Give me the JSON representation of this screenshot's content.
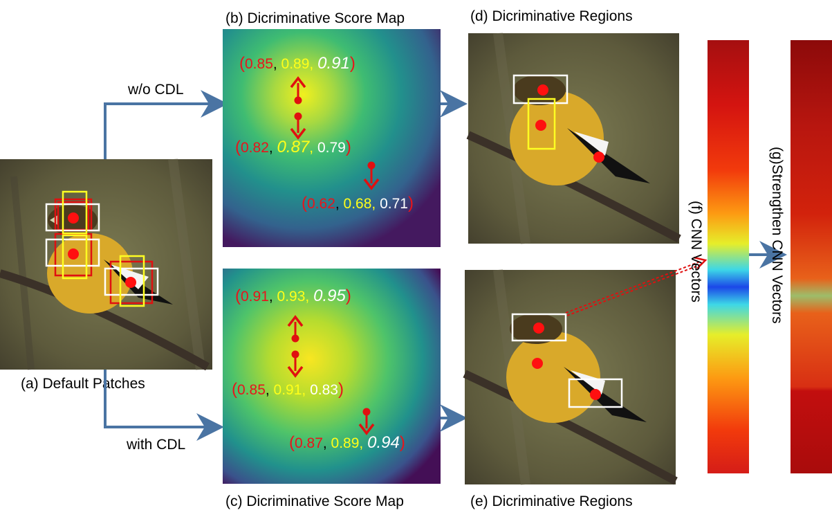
{
  "captions": {
    "a": "(a) Default  Patches",
    "b": "(b) Dicriminative Score Map",
    "c": "(c) Dicriminative Score Map",
    "d": "(d) Dicriminative Regions",
    "e": "(e) Dicriminative Regions",
    "f": "(f) CNN Vectors",
    "g": "(g)Strengthen CNN Vectors"
  },
  "branches": {
    "top": "w/o CDL",
    "bottom": "with CDL"
  },
  "colors": {
    "red": "#e8141b",
    "yellow": "#ffff1a",
    "white": "#ffffff",
    "arrow_blue": "#4a74a3",
    "paren": "#e8141b"
  },
  "score_maps": {
    "top": [
      {
        "values": [
          "0.85",
          "0.89",
          "0.91"
        ],
        "emphasis_index": 2
      },
      {
        "values": [
          "0.82",
          "0.87",
          "0.79"
        ],
        "emphasis_index": 1
      },
      {
        "values": [
          "0.62",
          "0.68",
          "0.71"
        ],
        "emphasis_index": -1
      }
    ],
    "bottom": [
      {
        "values": [
          "0.91",
          "0.93",
          "0.95"
        ],
        "emphasis_index": 2
      },
      {
        "values": [
          "0.85",
          "0.91",
          "0.83"
        ],
        "emphasis_index": -1
      },
      {
        "values": [
          "0.87",
          "0.89",
          "0.94"
        ],
        "emphasis_index": 2
      }
    ]
  }
}
